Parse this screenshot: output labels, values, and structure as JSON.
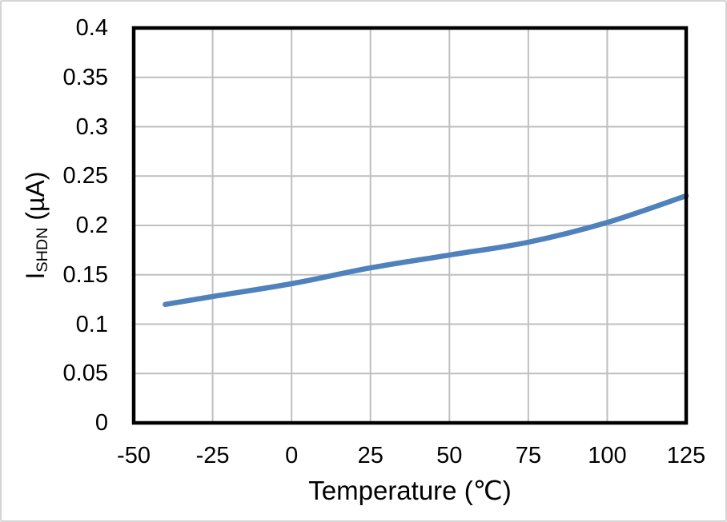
{
  "figure": {
    "background": "#ffffff",
    "border_color": "#d4d4d4"
  },
  "chart_data": {
    "type": "line",
    "title": "",
    "xlabel": "Temperature (℃)",
    "ylabel_parts": {
      "base": "I",
      "sub": "SHDN",
      "unit": " (µA)"
    },
    "x": [
      -40,
      -25,
      0,
      25,
      50,
      75,
      100,
      125
    ],
    "series": [
      {
        "name": "ISHDN",
        "values": [
          0.12,
          0.128,
          0.141,
          0.157,
          0.17,
          0.183,
          0.203,
          0.23
        ],
        "color": "#4F81BD",
        "stroke_width": 6.5,
        "smooth": true
      }
    ],
    "xlim": [
      -50,
      125
    ],
    "ylim": [
      0,
      0.4
    ],
    "x_ticks": [
      -50,
      -25,
      0,
      25,
      50,
      75,
      100,
      125
    ],
    "x_tick_labels": [
      "-50",
      "-25",
      "0",
      "25",
      "50",
      "75",
      "100",
      "125"
    ],
    "y_ticks": [
      0,
      0.05,
      0.1,
      0.15,
      0.2,
      0.25,
      0.3,
      0.35,
      0.4
    ],
    "y_tick_labels": [
      "0",
      "0.05",
      "0.1",
      "0.15",
      "0.2",
      "0.25",
      "0.3",
      "0.35",
      "0.4"
    ],
    "grid": {
      "show": true,
      "color": "#BFBFBF",
      "width": 2
    },
    "frame": {
      "color": "#000000",
      "width": 4.5
    },
    "legend": "none"
  }
}
